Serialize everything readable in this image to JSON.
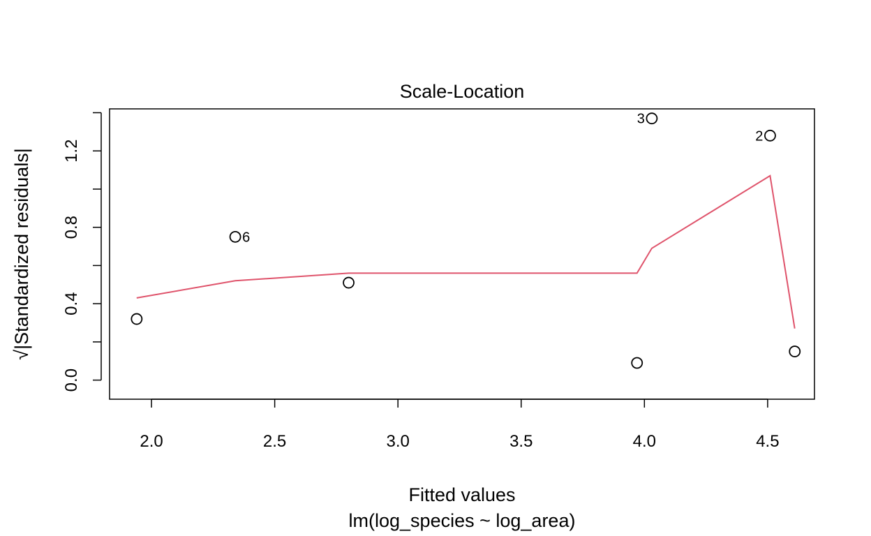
{
  "chart_data": {
    "type": "scatter",
    "title": "Scale-Location",
    "xlabel": "Fitted values",
    "xsublabel": "lm(log_species ~ log_area)",
    "ylabel": "√|Standardized residuals|",
    "xlim": [
      1.83,
      4.69
    ],
    "ylim": [
      -0.1,
      1.42
    ],
    "x_ticks": [
      2.0,
      2.5,
      3.0,
      3.5,
      4.0,
      4.5
    ],
    "x_tick_labels": [
      "2.0",
      "2.5",
      "3.0",
      "3.5",
      "4.0",
      "4.5"
    ],
    "y_ticks": [
      0.0,
      0.2,
      0.4,
      0.6,
      0.8,
      1.0,
      1.2,
      1.4
    ],
    "y_tick_labels": [
      "0.0",
      "",
      "0.4",
      "",
      "0.8",
      "",
      "1.2",
      ""
    ],
    "grid": false,
    "points": [
      {
        "x": 1.94,
        "y": 0.32,
        "label": ""
      },
      {
        "x": 2.34,
        "y": 0.75,
        "label": "6"
      },
      {
        "x": 2.8,
        "y": 0.51,
        "label": ""
      },
      {
        "x": 3.97,
        "y": 0.09,
        "label": ""
      },
      {
        "x": 4.03,
        "y": 1.37,
        "label": "3"
      },
      {
        "x": 4.51,
        "y": 1.28,
        "label": "2"
      },
      {
        "x": 4.61,
        "y": 0.15,
        "label": ""
      }
    ],
    "smoother": {
      "color": "#DF536B",
      "x": [
        1.94,
        2.34,
        2.8,
        3.97,
        4.03,
        4.51,
        4.61
      ],
      "y": [
        0.43,
        0.52,
        0.56,
        0.56,
        0.69,
        1.07,
        0.27
      ]
    }
  }
}
